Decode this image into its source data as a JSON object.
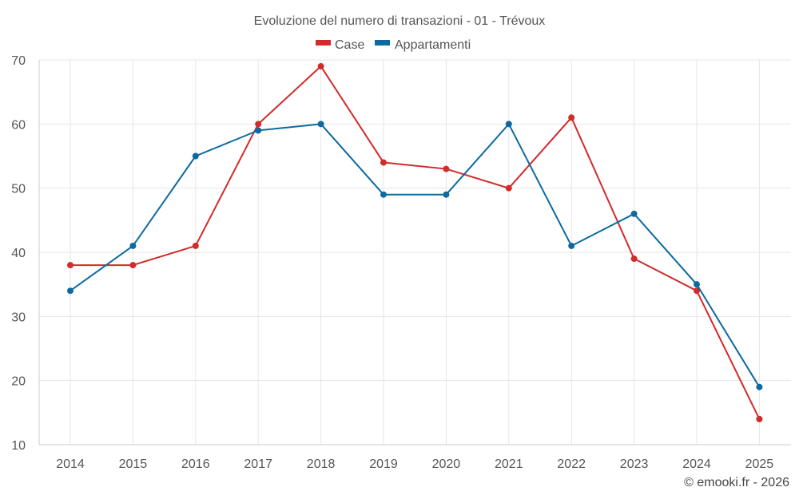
{
  "chart_data": {
    "type": "line",
    "title": "Evoluzione del numero di transazioni - 01 - Trévoux",
    "categories": [
      "2014",
      "2015",
      "2016",
      "2017",
      "2018",
      "2019",
      "2020",
      "2021",
      "2022",
      "2023",
      "2024",
      "2025"
    ],
    "series": [
      {
        "name": "Case",
        "color": "#d32a2a",
        "values": [
          38,
          38,
          41,
          60,
          69,
          54,
          53,
          50,
          61,
          39,
          34,
          14
        ]
      },
      {
        "name": "Appartamenti",
        "color": "#0c6aa0",
        "values": [
          34,
          41,
          55,
          59,
          60,
          49,
          49,
          60,
          41,
          46,
          35,
          19
        ]
      }
    ],
    "yticks": [
      10,
      20,
      30,
      40,
      50,
      60,
      70
    ],
    "ylim": [
      10,
      70
    ],
    "xlabel": "",
    "ylabel": "",
    "grid": true,
    "legend": "top-center",
    "credit": "© emooki.fr - 2026"
  }
}
